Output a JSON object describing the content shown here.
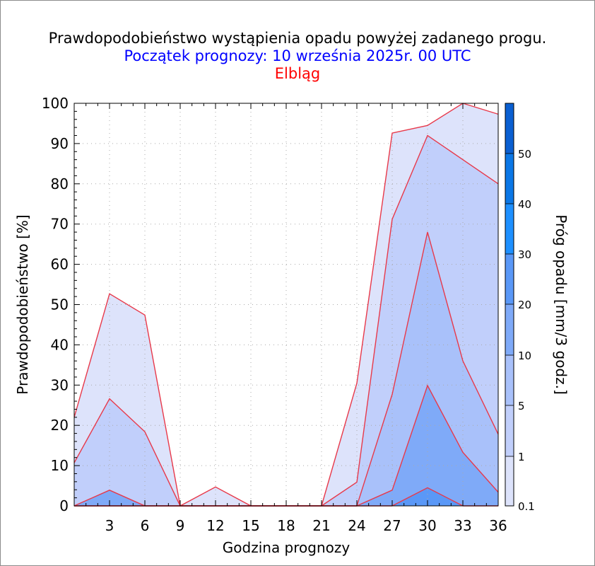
{
  "titles": {
    "line1": "Prawdopodobieństwo wystąpienia opadu powyżej zadanego progu.",
    "line2": "Początek prognozy: 10 września 2025r. 00 UTC",
    "line3": "Elbląg"
  },
  "colors": {
    "title": "#000000",
    "subtitle": "#0000ff",
    "location": "#ff0000",
    "boundary": "#e8394a",
    "grid": "#aaaaaa"
  },
  "chart_data": {
    "type": "area",
    "xlabel": "Godzina prognozy",
    "ylabel": "Prawdopodobieństwo [%]",
    "ylim": [
      0,
      100
    ],
    "xlim": [
      0,
      36
    ],
    "x": [
      0,
      3,
      6,
      9,
      12,
      15,
      18,
      21,
      24,
      27,
      30,
      33,
      36
    ],
    "x_ticks": [
      3,
      6,
      9,
      12,
      15,
      18,
      21,
      24,
      27,
      30,
      33,
      36
    ],
    "y_ticks": [
      0,
      10,
      20,
      30,
      40,
      50,
      60,
      70,
      80,
      90,
      100
    ],
    "grid": true,
    "series": [
      {
        "threshold": 0.1,
        "color": "#dde3fb",
        "values": [
          22,
          52.7,
          47.4,
          0,
          4.7,
          0,
          0,
          0,
          30.5,
          92.6,
          94.5,
          100,
          97.3
        ]
      },
      {
        "threshold": 1,
        "color": "#c1cffb",
        "values": [
          10.7,
          26.6,
          18.4,
          0,
          0,
          0,
          0,
          0,
          5.9,
          71.2,
          92,
          86,
          80
        ]
      },
      {
        "threshold": 5,
        "color": "#a9c1fa",
        "values": [
          0,
          0,
          0,
          0,
          0,
          0,
          0,
          0,
          0,
          27.7,
          68,
          36,
          17.8
        ]
      },
      {
        "threshold": 10,
        "color": "#7faaf8",
        "values": [
          0,
          3.9,
          0,
          0,
          0,
          0,
          0,
          0,
          0,
          3.9,
          29.9,
          13.3,
          3.4
        ]
      },
      {
        "threshold": 20,
        "color": "#5a98f7",
        "values": [
          0,
          0,
          0,
          0,
          0,
          0,
          0,
          0,
          0,
          0,
          4.5,
          0,
          0
        ]
      },
      {
        "threshold": 30,
        "color": "#1e90ff",
        "values": [
          0,
          0,
          0,
          0,
          0,
          0,
          0,
          0,
          0,
          0,
          0,
          0,
          0
        ]
      }
    ],
    "colorbar": {
      "label": "Próg opadu [mm/3 godz.]",
      "labels": [
        "0.1",
        "1",
        "5",
        "10",
        "20",
        "30",
        "40",
        "50"
      ],
      "colors": [
        "#dde3fb",
        "#c1cffb",
        "#a9c1fa",
        "#7faaf8",
        "#5a98f7",
        "#1e90ff",
        "#0b77e6",
        "#0a5fd1",
        "#0a47b8"
      ]
    }
  }
}
